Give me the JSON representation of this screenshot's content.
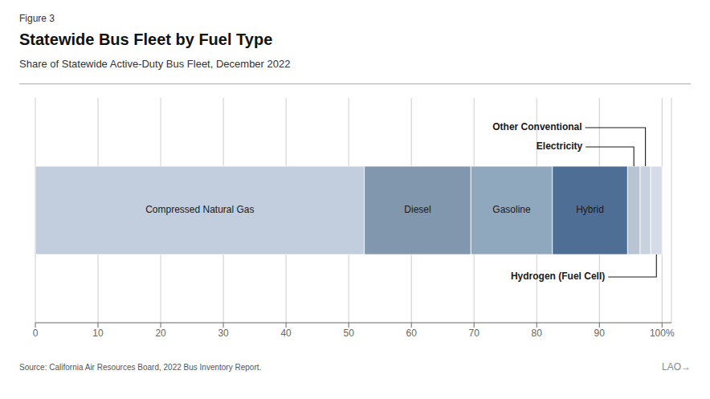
{
  "chart_data": {
    "type": "bar",
    "orientation": "horizontal",
    "stacked": true,
    "figure_label": "Figure 3",
    "title": "Statewide Bus Fleet by Fuel Type",
    "subtitle": "Share of Statewide Active-Duty Bus Fleet, December 2022",
    "source": "Source: California Air Resources Board, 2022 Bus Inventory Report.",
    "credit": "LAO→",
    "categories": [
      null
    ],
    "series": [
      {
        "name": "Compressed Natural Gas",
        "color": "#c2cede",
        "values": [
          52.5
        ]
      },
      {
        "name": "Diesel",
        "color": "#8097ae",
        "values": [
          17
        ]
      },
      {
        "name": "Gasoline",
        "color": "#8fa8be",
        "values": [
          13
        ]
      },
      {
        "name": "Hybrid",
        "color": "#4e6e96",
        "values": [
          12
        ]
      },
      {
        "name": "Electricity",
        "color": "#b8c4d4",
        "values": [
          2
        ]
      },
      {
        "name": "Other Conventional",
        "color": "#c8d2de",
        "values": [
          1.7
        ]
      },
      {
        "name": "Hydrogen (Fuel Cell)",
        "color": "#d5dce8",
        "values": [
          1.8
        ]
      }
    ],
    "annotations": [
      "Electricity",
      "Other Conventional",
      "Hydrogen (Fuel Cell)"
    ],
    "xlim": [
      0,
      101.5
    ],
    "xticks": [
      0,
      10,
      20,
      30,
      40,
      50,
      60,
      70,
      80,
      90,
      {
        "value": 100,
        "label": "100%"
      }
    ],
    "grid": true
  }
}
